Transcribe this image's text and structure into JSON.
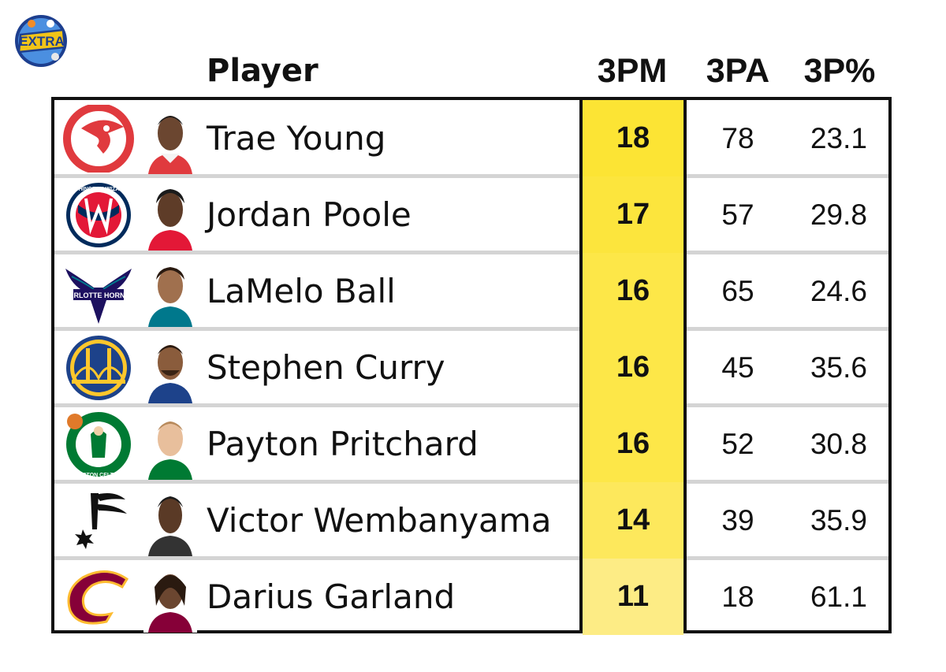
{
  "brand": {
    "logo_text": "EXTRA"
  },
  "headers": {
    "player": "Player",
    "threepm": "3PM",
    "threepa": "3PA",
    "threepct": "3P%"
  },
  "rows": [
    {
      "team_icon": "atlanta-hawks-logo-icon",
      "player": "Trae Young",
      "threepm": "18",
      "threepa": "78",
      "threepct": "23.1",
      "highlight": "#fce434"
    },
    {
      "team_icon": "washington-wizards-logo-icon",
      "player": "Jordan Poole",
      "threepm": "17",
      "threepa": "57",
      "threepct": "29.8",
      "highlight": "#fce53d",
      "team_logo_text": "WASHINGTON WIZARDS"
    },
    {
      "team_icon": "charlotte-hornets-logo-icon",
      "player": "LaMelo Ball",
      "threepm": "16",
      "threepa": "65",
      "threepct": "24.6",
      "highlight": "#fde748",
      "team_logo_text": "CHARLOTTE HORNETS"
    },
    {
      "team_icon": "golden-state-warriors-logo-icon",
      "player": "Stephen Curry",
      "threepm": "16",
      "threepa": "45",
      "threepct": "35.6",
      "highlight": "#fde748"
    },
    {
      "team_icon": "boston-celtics-logo-icon",
      "player": "Payton Pritchard",
      "threepm": "16",
      "threepa": "52",
      "threepct": "30.8",
      "highlight": "#fde748",
      "team_logo_text": "BOSTON CELTICS"
    },
    {
      "team_icon": "san-antonio-spurs-logo-icon",
      "player": "Victor Wembanyama",
      "threepm": "14",
      "threepa": "39",
      "threepct": "35.9",
      "highlight": "#fde85c"
    },
    {
      "team_icon": "cleveland-cavaliers-logo-icon",
      "player": "Darius Garland",
      "threepm": "11",
      "threepa": "18",
      "threepct": "61.1",
      "highlight": "#fdec85"
    }
  ]
}
